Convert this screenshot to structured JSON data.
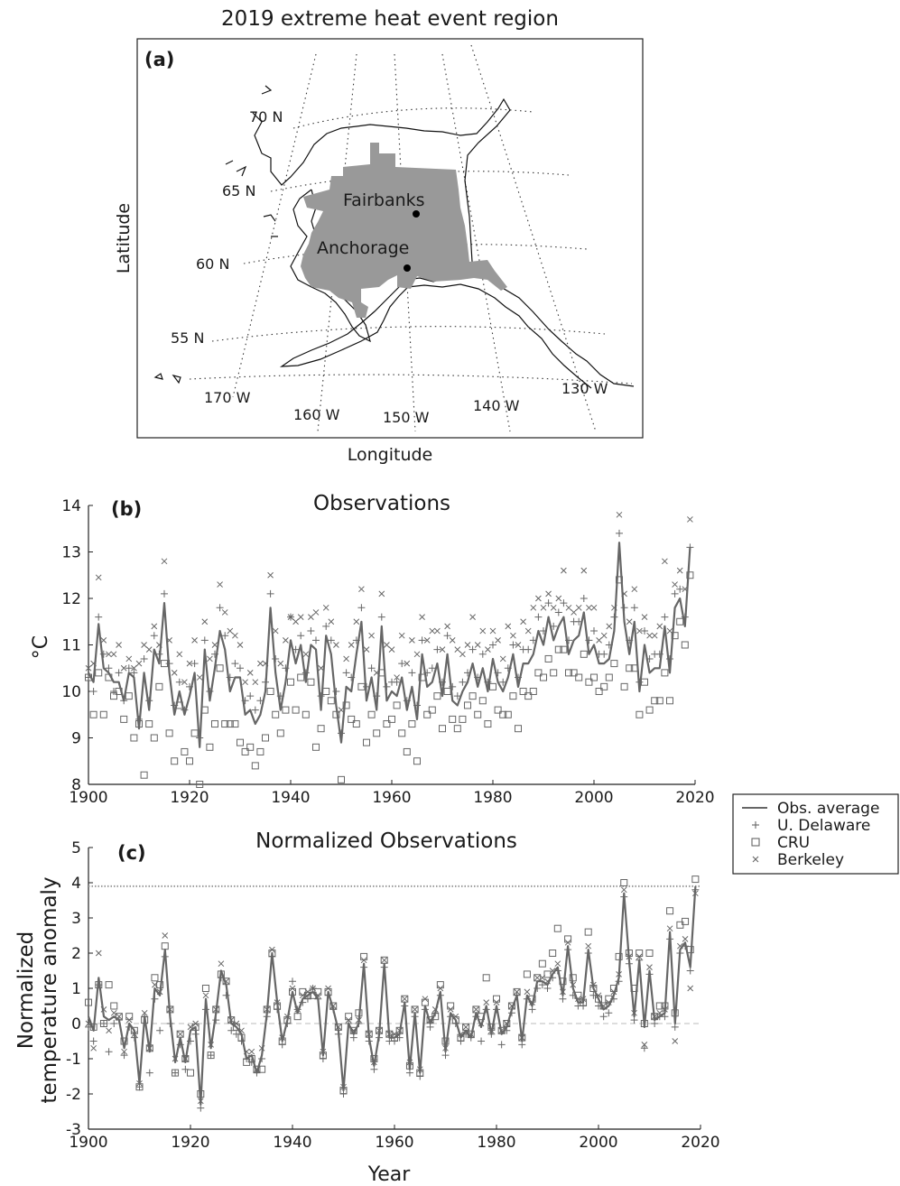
{
  "figure_title": "2019 extreme heat event region",
  "map": {
    "panel_label": "(a)",
    "xlabel": "Longitude",
    "ylabel": "Latitude",
    "lat_labels": [
      "70 N",
      "65 N",
      "60 N",
      "55 N"
    ],
    "lon_labels": [
      "170 W",
      "160 W",
      "150 W",
      "140 W",
      "130 W"
    ],
    "cities": [
      "Fairbanks",
      "Anchorage"
    ],
    "region_color": "#999999"
  },
  "legend": {
    "placement": "right, between panels (b) and (c)",
    "entries": [
      "Obs. average",
      "U. Delaware",
      "CRU",
      "Berkeley"
    ]
  },
  "chart_data": [
    {
      "type": "line",
      "panel_label": "(b)",
      "title": "Observations",
      "xlabel": "",
      "ylabel": "°C",
      "xlim": [
        1900,
        2020
      ],
      "ylim": [
        8,
        14
      ],
      "xticks": [
        1900,
        1920,
        1940,
        1960,
        1980,
        2000,
        2020
      ],
      "yticks": [
        8,
        9,
        10,
        11,
        12,
        13,
        14
      ],
      "years_start": 1900,
      "series": [
        {
          "name": "Obs. average",
          "marker": "line",
          "color": "#666666",
          "values": [
            10.4,
            10.2,
            11.45,
            10.5,
            10.4,
            10.2,
            10.2,
            9.8,
            10.4,
            10.3,
            9.2,
            10.4,
            9.6,
            10.9,
            10.6,
            11.9,
            10.4,
            9.5,
            10.0,
            9.5,
            9.9,
            10.4,
            8.8,
            10.9,
            9.8,
            10.5,
            11.3,
            10.9,
            10.0,
            10.3,
            10.3,
            9.5,
            9.6,
            9.3,
            9.5,
            10.0,
            11.8,
            10.4,
            9.6,
            10.2,
            11.1,
            10.6,
            11.0,
            10.2,
            11.0,
            10.9,
            9.6,
            11.2,
            10.8,
            9.7,
            8.9,
            10.1,
            10.0,
            10.8,
            11.5,
            9.8,
            10.3,
            9.6,
            11.4,
            9.8,
            10.0,
            9.9,
            10.3,
            9.6,
            10.1,
            9.4,
            10.8,
            10.1,
            10.2,
            10.6,
            9.9,
            10.8,
            9.8,
            9.7,
            10.0,
            10.2,
            10.6,
            10.1,
            10.5,
            10.0,
            10.7,
            10.2,
            10.0,
            10.3,
            10.8,
            10.1,
            10.6,
            10.6,
            10.8,
            11.3,
            11.0,
            11.6,
            11.1,
            11.4,
            11.6,
            10.8,
            11.1,
            11.2,
            11.7,
            10.8,
            11.0,
            10.6,
            10.6,
            10.7,
            11.3,
            13.2,
            11.5,
            10.8,
            11.5,
            10.0,
            11.0,
            10.4,
            10.5,
            10.5,
            11.4,
            10.4,
            11.8,
            12.0,
            11.4,
            13.1
          ]
        },
        {
          "name": "U. Delaware",
          "marker": "+",
          "color": "#666666",
          "values": [
            10.3,
            10.0,
            11.6,
            10.8,
            10.5,
            10.0,
            10.4,
            9.8,
            10.5,
            10.4,
            9.4,
            10.7,
            9.8,
            11.2,
            10.8,
            12.1,
            10.6,
            9.7,
            10.2,
            9.6,
            10.1,
            10.6,
            9.0,
            11.1,
            10.0,
            10.8,
            11.8,
            11.2,
            10.3,
            10.6,
            10.5,
            9.8,
            9.9,
            9.6,
            9.8,
            10.2,
            12.1,
            10.7,
            9.9,
            10.5,
            11.6,
            10.9,
            11.2,
            10.4,
            11.3,
            11.1,
            9.9,
            11.4,
            11.1,
            10.0,
            9.1,
            10.4,
            10.3,
            11.1,
            11.8,
            10.1,
            10.5,
            9.9,
            11.6,
            10.1,
            10.2,
            10.2,
            10.6,
            9.8,
            10.4,
            9.7,
            11.1,
            10.4,
            10.5,
            10.9,
            10.2,
            11.2,
            10.1,
            9.9,
            10.2,
            10.4,
            10.9,
            10.3,
            10.8,
            10.2,
            11.0,
            10.4,
            10.2,
            10.5,
            11.0,
            10.3,
            10.9,
            10.9,
            11.1,
            11.6,
            11.3,
            11.9,
            11.4,
            11.7,
            11.9,
            11.1,
            11.5,
            11.5,
            12.0,
            11.1,
            11.3,
            10.8,
            10.8,
            11.0,
            11.6,
            13.4,
            11.8,
            11.1,
            11.8,
            10.2,
            11.3,
            10.7,
            10.8,
            10.8,
            11.6,
            10.7,
            12.1,
            12.2,
            11.6,
            13.1
          ]
        },
        {
          "name": "CRU",
          "marker": "square",
          "color": "#666666",
          "values": [
            10.3,
            9.5,
            10.4,
            9.5,
            10.3,
            9.9,
            10.0,
            9.4,
            9.9,
            9.0,
            9.3,
            8.2,
            9.3,
            9.0,
            10.1,
            10.6,
            9.1,
            8.5,
            9.7,
            8.7,
            8.5,
            9.1,
            8.0,
            9.6,
            8.8,
            9.3,
            10.5,
            9.3,
            9.3,
            9.3,
            8.9,
            8.7,
            8.8,
            8.4,
            8.7,
            9.0,
            10.0,
            9.5,
            9.1,
            9.6,
            10.2,
            9.6,
            10.3,
            9.5,
            10.2,
            8.8,
            9.2,
            10.0,
            9.8,
            9.5,
            8.1,
            9.7,
            9.4,
            9.3,
            10.1,
            8.9,
            9.5,
            9.1,
            10.4,
            9.3,
            9.4,
            9.7,
            9.1,
            8.7,
            9.3,
            8.5,
            10.3,
            9.5,
            9.6,
            9.9,
            9.2,
            10.0,
            9.4,
            9.2,
            9.4,
            9.7,
            9.9,
            9.5,
            9.8,
            9.3,
            10.1,
            9.6,
            9.5,
            9.5,
            9.9,
            9.2,
            10.0,
            9.9,
            10.0,
            10.4,
            10.3,
            10.7,
            10.4,
            10.9,
            10.9,
            10.4,
            10.4,
            10.3,
            10.8,
            10.2,
            10.3,
            10.0,
            10.1,
            10.3,
            10.6,
            12.4,
            10.1,
            10.5,
            10.5,
            9.5,
            10.2,
            9.6,
            9.8,
            9.8,
            10.4,
            9.8,
            11.2,
            11.5,
            11.0,
            12.5
          ]
        },
        {
          "name": "Berkeley",
          "marker": "x",
          "color": "#666666",
          "values": [
            10.5,
            10.6,
            12.45,
            11.1,
            10.8,
            10.8,
            11.0,
            10.5,
            10.7,
            10.5,
            10.6,
            11.0,
            10.9,
            11.4,
            11.0,
            12.8,
            11.1,
            10.4,
            10.8,
            10.2,
            10.6,
            11.1,
            10.3,
            11.5,
            10.7,
            11.0,
            12.3,
            11.7,
            11.3,
            11.2,
            11.0,
            10.2,
            10.4,
            10.2,
            10.6,
            10.6,
            12.5,
            11.3,
            10.6,
            11.1,
            11.6,
            11.5,
            11.6,
            10.8,
            11.6,
            11.7,
            10.5,
            11.8,
            11.5,
            11.0,
            9.6,
            10.7,
            11.0,
            11.5,
            12.2,
            10.9,
            11.2,
            10.4,
            12.1,
            11.0,
            10.9,
            10.3,
            11.2,
            10.6,
            11.1,
            10.8,
            11.6,
            11.1,
            11.3,
            11.3,
            10.9,
            11.4,
            11.1,
            10.9,
            10.8,
            11.0,
            11.6,
            11.0,
            11.3,
            10.9,
            11.3,
            11.1,
            10.7,
            11.4,
            11.2,
            11.0,
            11.5,
            11.3,
            11.8,
            12.0,
            11.8,
            12.1,
            11.8,
            12.0,
            12.6,
            11.8,
            11.7,
            11.8,
            12.6,
            11.8,
            11.8,
            11.1,
            11.2,
            11.4,
            11.8,
            13.8,
            12.1,
            11.5,
            12.2,
            11.3,
            11.6,
            11.2,
            11.2,
            11.4,
            12.8,
            11.3,
            12.3,
            12.6,
            12.2,
            13.7
          ]
        }
      ]
    },
    {
      "type": "line",
      "panel_label": "(c)",
      "title": "Normalized Observations",
      "xlabel": "Year",
      "ylabel": "Normalized temperature anomaly",
      "xlim": [
        1900,
        2020
      ],
      "ylim": [
        -3,
        5
      ],
      "xticks": [
        1900,
        1920,
        1940,
        1960,
        1980,
        2000,
        2020
      ],
      "yticks": [
        -3,
        -2,
        -1,
        0,
        1,
        2,
        3,
        4,
        5
      ],
      "hlines": [
        {
          "y": 3.9,
          "style": "dotted"
        },
        {
          "y": 0,
          "style": "dashed"
        }
      ],
      "years_start": 1900,
      "series": [
        {
          "name": "Obs. average",
          "marker": "line",
          "color": "#666666",
          "values": [
            0.2,
            -0.2,
            1.3,
            0.2,
            0.1,
            0.2,
            0.1,
            -0.7,
            0.0,
            -0.2,
            -1.7,
            0.2,
            -0.8,
            1.0,
            0.8,
            2.1,
            0.2,
            -1.1,
            -0.4,
            -1.1,
            -0.2,
            -0.1,
            -2.3,
            0.7,
            -0.7,
            0.3,
            1.5,
            1.1,
            0.0,
            -0.1,
            -0.3,
            -1.0,
            -0.9,
            -1.4,
            -0.9,
            0.3,
            2.0,
            0.6,
            -0.5,
            0.1,
            0.9,
            0.3,
            0.7,
            0.8,
            0.9,
            0.7,
            -0.9,
            0.9,
            0.4,
            -0.2,
            -1.9,
            0.0,
            -0.3,
            0.0,
            1.7,
            -0.4,
            -1.2,
            -0.3,
            1.7,
            -0.4,
            -0.4,
            -0.3,
            0.6,
            -1.3,
            0.3,
            -1.4,
            0.5,
            0.0,
            0.3,
            0.9,
            -0.8,
            0.3,
            0.1,
            -0.4,
            -0.2,
            -0.4,
            0.3,
            -0.1,
            0.5,
            -0.3,
            0.5,
            -0.3,
            -0.1,
            0.4,
            0.8,
            -0.5,
            0.8,
            0.5,
            1.2,
            1.2,
            1.1,
            1.4,
            1.6,
            0.8,
            2.2,
            1.0,
            0.6,
            0.6,
            2.1,
            1.0,
            0.7,
            0.4,
            0.5,
            0.8,
            1.3,
            3.7,
            1.8,
            0.2,
            1.8,
            -0.1,
            1.5,
            0.1,
            0.2,
            0.3,
            2.6,
            0.0,
            2.1,
            2.3,
            1.6,
            3.9
          ]
        },
        {
          "name": "U. Delaware",
          "marker": "+",
          "color": "#666666",
          "values": [
            -0.1,
            -0.5,
            1.1,
            0.0,
            -0.8,
            0.0,
            0.1,
            -0.9,
            -0.1,
            -0.4,
            -1.8,
            0.2,
            -1.4,
            0.7,
            -0.2,
            1.9,
            0.0,
            -1.4,
            -0.6,
            -1.3,
            -0.5,
            -0.3,
            -2.4,
            0.4,
            -0.9,
            0.1,
            1.3,
            0.8,
            -0.2,
            -0.3,
            -0.5,
            -1.0,
            -1.1,
            -1.4,
            -1.0,
            0.2,
            1.9,
            0.4,
            -0.6,
            0.0,
            1.2,
            0.4,
            0.6,
            0.7,
            1.0,
            0.7,
            -1.0,
            0.8,
            0.4,
            -0.3,
            -2.0,
            0.0,
            -0.4,
            0.0,
            1.6,
            -0.5,
            -1.3,
            -0.4,
            1.6,
            -0.5,
            -0.5,
            -0.4,
            0.5,
            -1.4,
            0.2,
            -1.5,
            0.4,
            -0.1,
            0.3,
            0.8,
            -0.9,
            0.2,
            0.0,
            -0.5,
            -0.3,
            -0.4,
            0.2,
            -0.5,
            0.4,
            -0.3,
            0.4,
            -0.6,
            -0.2,
            0.3,
            0.8,
            -0.6,
            0.7,
            0.4,
            1.0,
            1.1,
            1.0,
            1.3,
            1.5,
            0.7,
            2.1,
            0.8,
            0.5,
            0.5,
            2.0,
            0.8,
            0.5,
            0.2,
            0.3,
            0.7,
            1.2,
            3.6,
            1.7,
            0.1,
            1.8,
            -0.7,
            1.4,
            0.0,
            0.2,
            0.2,
            2.4,
            -0.1,
            2.0,
            2.2,
            1.5,
            3.8
          ]
        },
        {
          "name": "CRU",
          "marker": "square",
          "color": "#666666",
          "values": [
            0.6,
            -0.1,
            1.1,
            0.0,
            1.1,
            0.5,
            0.2,
            -0.5,
            0.2,
            -0.2,
            -1.8,
            0.1,
            -0.7,
            1.3,
            1.1,
            2.2,
            0.4,
            -1.4,
            -0.3,
            -1.0,
            -1.4,
            -0.1,
            -2.0,
            1.0,
            -0.9,
            0.4,
            1.4,
            1.2,
            0.1,
            -0.1,
            -0.4,
            -1.1,
            -1.0,
            -1.3,
            -1.3,
            0.4,
            2.0,
            0.5,
            -0.5,
            0.1,
            0.9,
            0.2,
            0.9,
            0.8,
            0.8,
            0.9,
            -0.9,
            0.9,
            0.5,
            -0.1,
            -1.9,
            0.2,
            -0.2,
            0.3,
            1.9,
            -0.3,
            -1.0,
            -0.2,
            1.8,
            -0.3,
            -0.4,
            -0.2,
            0.7,
            -1.2,
            0.4,
            -1.4,
            0.6,
            0.1,
            0.2,
            1.1,
            -0.5,
            0.5,
            0.1,
            -0.4,
            -0.1,
            -0.3,
            0.4,
            0.2,
            1.3,
            -0.1,
            0.7,
            -0.2,
            0.0,
            0.5,
            0.9,
            -0.4,
            1.4,
            0.7,
            1.3,
            1.7,
            1.4,
            2.0,
            2.7,
            1.2,
            2.4,
            1.3,
            0.8,
            0.6,
            2.6,
            1.0,
            0.7,
            0.5,
            0.7,
            1.0,
            1.9,
            4.0,
            2.0,
            1.0,
            2.0,
            0.0,
            2.0,
            0.2,
            0.5,
            0.5,
            3.2,
            0.3,
            2.8,
            2.9,
            2.1,
            4.1
          ]
        },
        {
          "name": "Berkeley",
          "marker": "x",
          "color": "#666666",
          "values": [
            0.0,
            -0.7,
            2.0,
            0.4,
            -0.2,
            0.3,
            0.2,
            -0.8,
            0.1,
            -0.3,
            -1.7,
            0.3,
            -0.7,
            1.1,
            0.9,
            2.5,
            0.4,
            -1.0,
            -0.3,
            -1.0,
            -0.1,
            0.0,
            -2.2,
            0.8,
            -0.6,
            0.4,
            1.7,
            1.2,
            0.1,
            0.0,
            -0.2,
            -0.8,
            -0.8,
            -1.3,
            -0.7,
            0.4,
            2.1,
            0.6,
            -0.4,
            0.2,
            1.0,
            0.4,
            0.8,
            0.9,
            1.0,
            0.8,
            -0.8,
            1.0,
            0.5,
            -0.1,
            -1.8,
            0.1,
            -0.2,
            0.1,
            1.8,
            -0.3,
            -1.1,
            -0.2,
            1.8,
            -0.3,
            -0.3,
            -0.2,
            0.7,
            -1.1,
            0.4,
            -1.3,
            0.7,
            0.1,
            0.4,
            1.0,
            -0.7,
            0.4,
            0.2,
            -0.3,
            -0.1,
            -0.3,
            0.4,
            0.0,
            0.6,
            -0.2,
            0.6,
            -0.2,
            0.0,
            0.5,
            0.9,
            -0.4,
            0.9,
            0.6,
            1.3,
            1.3,
            1.2,
            1.5,
            1.7,
            0.9,
            2.3,
            1.1,
            0.7,
            0.7,
            2.2,
            1.1,
            0.8,
            0.5,
            0.6,
            0.9,
            1.4,
            3.8,
            1.9,
            0.3,
            1.9,
            -0.6,
            1.6,
            0.2,
            0.3,
            0.4,
            2.7,
            -0.5,
            2.2,
            2.4,
            1.0,
            3.7
          ]
        }
      ]
    }
  ]
}
